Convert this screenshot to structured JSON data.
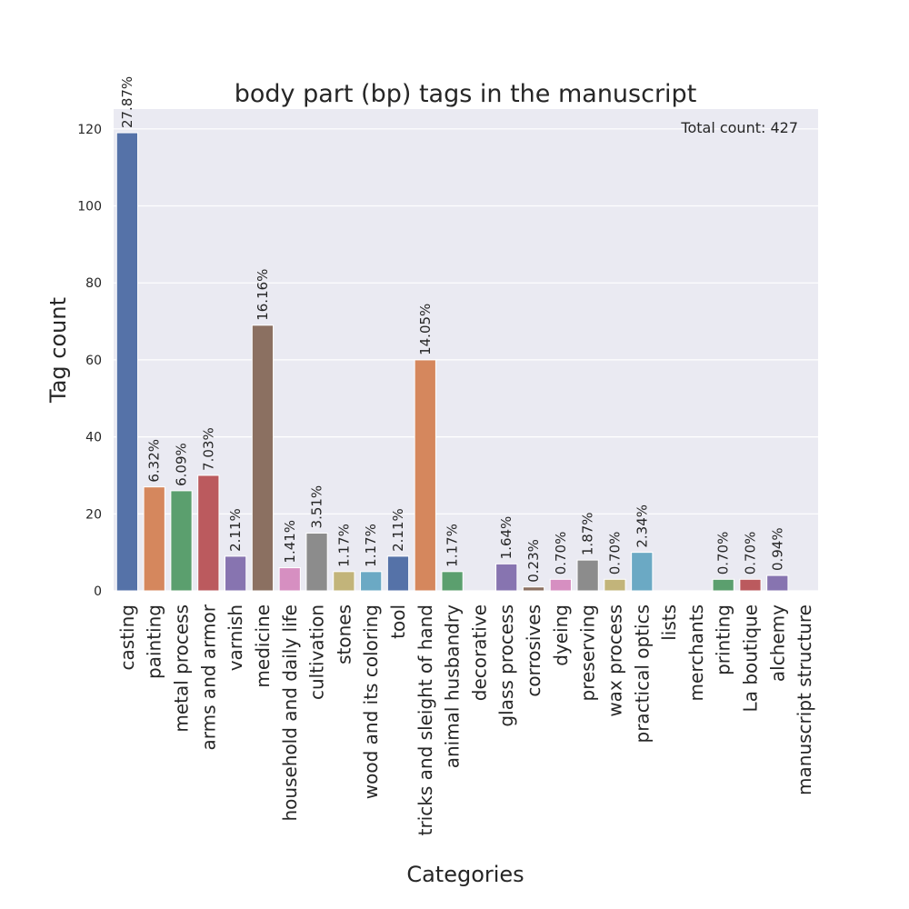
{
  "chart_data": {
    "type": "bar",
    "title": "body part (bp) tags in the manuscript",
    "xlabel": "Categories",
    "ylabel": "Tag count",
    "ylim": [
      0,
      125
    ],
    "yticks": [
      "0",
      "20",
      "40",
      "60",
      "80",
      "100",
      "120"
    ],
    "grid": true,
    "annotation": "Total count: 427",
    "categories": [
      "casting",
      "painting",
      "metal process",
      "arms and armor",
      "varnish",
      "medicine",
      "household and daily life",
      "cultivation",
      "stones",
      "wood and its coloring",
      "tool",
      "tricks and sleight of hand",
      "animal husbandry",
      "decorative",
      "glass process",
      "corrosives",
      "dyeing",
      "preserving",
      "wax process",
      "practical optics",
      "lists",
      "merchants",
      "printing",
      "La boutique",
      "alchemy",
      "manuscript structure"
    ],
    "values": [
      119,
      27,
      26,
      30,
      9,
      69,
      6,
      15,
      5,
      5,
      9,
      60,
      5,
      0,
      7,
      1,
      3,
      8,
      3,
      10,
      0,
      0,
      3,
      3,
      4,
      0
    ],
    "labels": [
      "27.87%",
      "6.32%",
      "6.09%",
      "7.03%",
      "2.11%",
      "16.16%",
      "1.41%",
      "3.51%",
      "1.17%",
      "1.17%",
      "2.11%",
      "14.05%",
      "1.17%",
      "",
      "1.64%",
      "0.23%",
      "0.70%",
      "1.87%",
      "0.70%",
      "2.34%",
      "",
      "",
      "0.70%",
      "0.70%",
      "0.94%",
      ""
    ],
    "colors": [
      "#5572a8",
      "#d5875d",
      "#5b9f6e",
      "#bb5a5e",
      "#8774b0",
      "#8b7061",
      "#d68fc1",
      "#8c8c8c",
      "#c2b47a",
      "#6ba9c4",
      "#5572a8",
      "#d5875d",
      "#5b9f6e",
      "#bb5a5e",
      "#8774b0",
      "#8b7061",
      "#d68fc1",
      "#8c8c8c",
      "#c2b47a",
      "#6ba9c4",
      "#5572a8",
      "#d5875d",
      "#5b9f6e",
      "#bb5a5e",
      "#8774b0",
      "#8b7061"
    ]
  }
}
